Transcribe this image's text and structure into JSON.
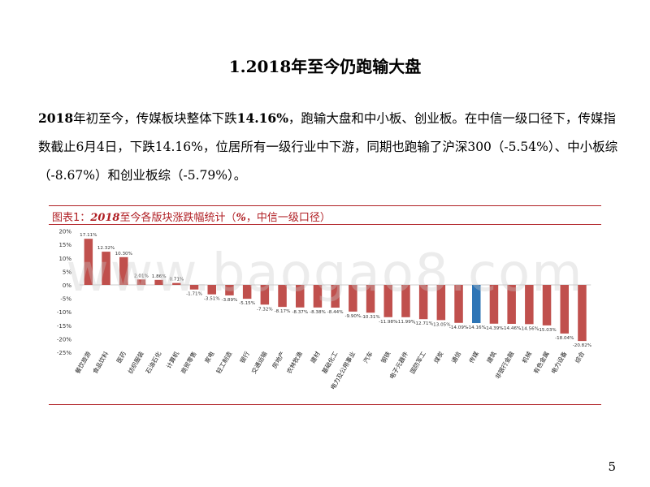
{
  "slide": {
    "title": "1.2018年至今仍跑输大盘",
    "para_p1": "2018",
    "para_p2": "年初至今，传媒板块整体下跌",
    "para_p3": "14.16%",
    "para_p4": "，跑输大盘和中小板、创业板。在中信一级口径下，传媒指数截止6月4日，下跌14.16%，位居所有一级行业中下游，同期也跑输了沪深300（-5.54%）、中小板综（-8.67%）和创业板综（-5.79%）。",
    "caption_p1": "图表1：",
    "caption_p2": "2018",
    "caption_p3": "至今各版块涨跌幅统计（",
    "caption_p4": "%",
    "caption_p5": "，中信一级口径）",
    "watermark": "www.baogao8.com",
    "page_number": "5"
  },
  "colors": {
    "accent": "#b01f24",
    "bar": "#c0504d",
    "highlight": "#2e75b6"
  },
  "chart_data": {
    "type": "bar",
    "title": "2018至今各版块涨跌幅统计（%，中信一级口径）",
    "ylim": [
      -25,
      20
    ],
    "yticks": [
      "20%",
      "15%",
      "10%",
      "5%",
      "0%",
      "-5%",
      "-10%",
      "-15%",
      "-20%",
      "-25%"
    ],
    "highlight_category": "传媒",
    "categories": [
      "餐饮旅游",
      "食品饮料",
      "医药",
      "纺织服装",
      "石油石化",
      "计算机",
      "商贸零售",
      "家电",
      "轻工制造",
      "银行",
      "交通运输",
      "房地产",
      "农林牧渔",
      "建材",
      "基础化工",
      "电力及公用事业",
      "汽车",
      "钢铁",
      "电子元器件",
      "国防军工",
      "煤炭",
      "通信",
      "传媒",
      "建筑",
      "非银行金融",
      "机械",
      "有色金属",
      "电力设备",
      "综合"
    ],
    "values": [
      17.11,
      12.32,
      10.3,
      2.01,
      1.86,
      0.71,
      -1.71,
      -3.51,
      -3.89,
      -5.15,
      -7.32,
      -8.17,
      -8.37,
      -8.38,
      -8.44,
      -9.9,
      -10.31,
      -11.98,
      -11.99,
      -12.71,
      -13.05,
      -14.09,
      -14.16,
      -14.39,
      -14.46,
      -14.56,
      -15.03,
      -18.04,
      -20.82
    ],
    "data_labels": [
      "17.11%",
      "12.32%",
      "10.30%",
      "2.01%",
      "1.86%",
      "0.71%",
      "-1.71%",
      "-3.51%",
      "-3.89%",
      "-5.15%",
      "-7.32%",
      "-8.17%",
      "-8.37%",
      "-8.38%",
      "-8.44%",
      "-9.90%",
      "-10.31%",
      "-11.98%",
      "-11.99%",
      "-12.71%",
      "-13.05%",
      "-14.09%",
      "-14.16%",
      "-14.39%",
      "-14.46%",
      "-14.56%",
      "-15.03%",
      "-18.04%",
      "-20.82%"
    ]
  }
}
